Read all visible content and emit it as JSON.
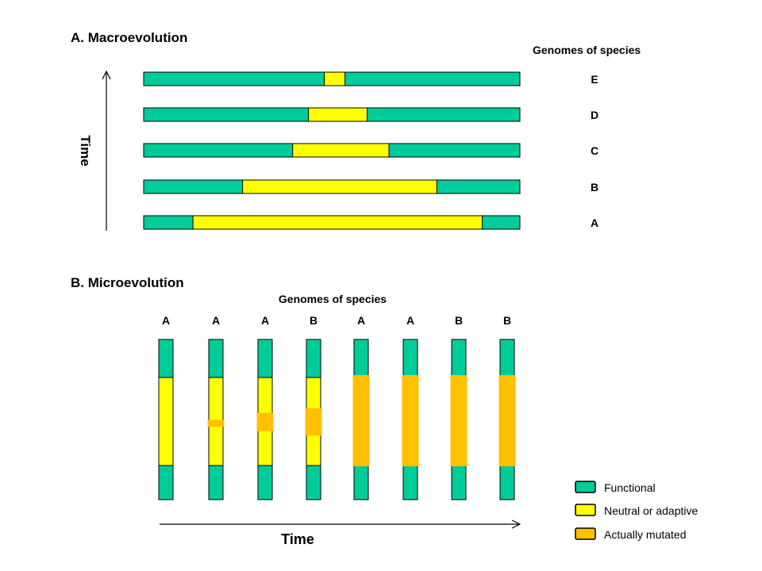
{
  "colors": {
    "functional": "#00cc99",
    "neutral": "#ffff00",
    "mutated": "#ffc000",
    "stroke": "#000000"
  },
  "macro": {
    "title": "A. Macroevolution",
    "genomes_label": "Genomes of species",
    "time_label": "Time",
    "rows": [
      {
        "label": "E",
        "neutral_start": 0.48,
        "neutral_end": 0.535
      },
      {
        "label": "D",
        "neutral_start": 0.438,
        "neutral_end": 0.594
      },
      {
        "label": "C",
        "neutral_start": 0.396,
        "neutral_end": 0.652
      },
      {
        "label": "B",
        "neutral_start": 0.263,
        "neutral_end": 0.779
      },
      {
        "label": "A",
        "neutral_start": 0.131,
        "neutral_end": 0.9
      }
    ]
  },
  "micro": {
    "title": "B. Microevolution",
    "genomes_label": "Genomes of species",
    "time_label": "Time",
    "columns": [
      {
        "label": "A",
        "mutated_start": null,
        "mutated_end": null
      },
      {
        "label": "A",
        "mutated_start": 0.48,
        "mutated_end": 0.56
      },
      {
        "label": "A",
        "mutated_start": 0.4,
        "mutated_end": 0.61
      },
      {
        "label": "B",
        "mutated_start": 0.35,
        "mutated_end": 0.66
      },
      {
        "label": "A",
        "mutated_start": 0.0,
        "mutated_end": 1.0
      },
      {
        "label": "A",
        "mutated_start": 0.0,
        "mutated_end": 1.0
      },
      {
        "label": "B",
        "mutated_start": 0.0,
        "mutated_end": 1.0
      },
      {
        "label": "B",
        "mutated_start": 0.0,
        "mutated_end": 1.0
      }
    ]
  },
  "legend": {
    "items": [
      {
        "key": "functional",
        "label": "Functional"
      },
      {
        "key": "neutral",
        "label": "Neutral or adaptive"
      },
      {
        "key": "mutated",
        "label": "Actually mutated"
      }
    ]
  }
}
